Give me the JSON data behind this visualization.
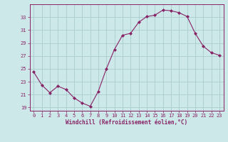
{
  "x": [
    0,
    1,
    2,
    3,
    4,
    5,
    6,
    7,
    8,
    9,
    10,
    11,
    12,
    13,
    14,
    15,
    16,
    17,
    18,
    19,
    20,
    21,
    22,
    23
  ],
  "y": [
    24.5,
    22.5,
    21.3,
    22.3,
    21.8,
    20.5,
    19.7,
    19.2,
    21.5,
    25.0,
    28.0,
    30.2,
    30.5,
    32.2,
    33.1,
    33.3,
    34.1,
    34.0,
    33.7,
    33.1,
    30.5,
    28.5,
    27.5,
    27.1
  ],
  "xlim": [
    -0.5,
    23.5
  ],
  "ylim": [
    18.5,
    35.0
  ],
  "yticks": [
    19,
    21,
    23,
    25,
    27,
    29,
    31,
    33
  ],
  "xticks": [
    0,
    1,
    2,
    3,
    4,
    5,
    6,
    7,
    8,
    9,
    10,
    11,
    12,
    13,
    14,
    15,
    16,
    17,
    18,
    19,
    20,
    21,
    22,
    23
  ],
  "xlabel": "Windchill (Refroidissement éolien,°C)",
  "line_color": "#882266",
  "marker": "D",
  "marker_size": 2.0,
  "background_color": "#cce8e8",
  "grid_color": "#aacccc",
  "title": "",
  "tick_fontsize": 5.0,
  "xlabel_fontsize": 5.5
}
